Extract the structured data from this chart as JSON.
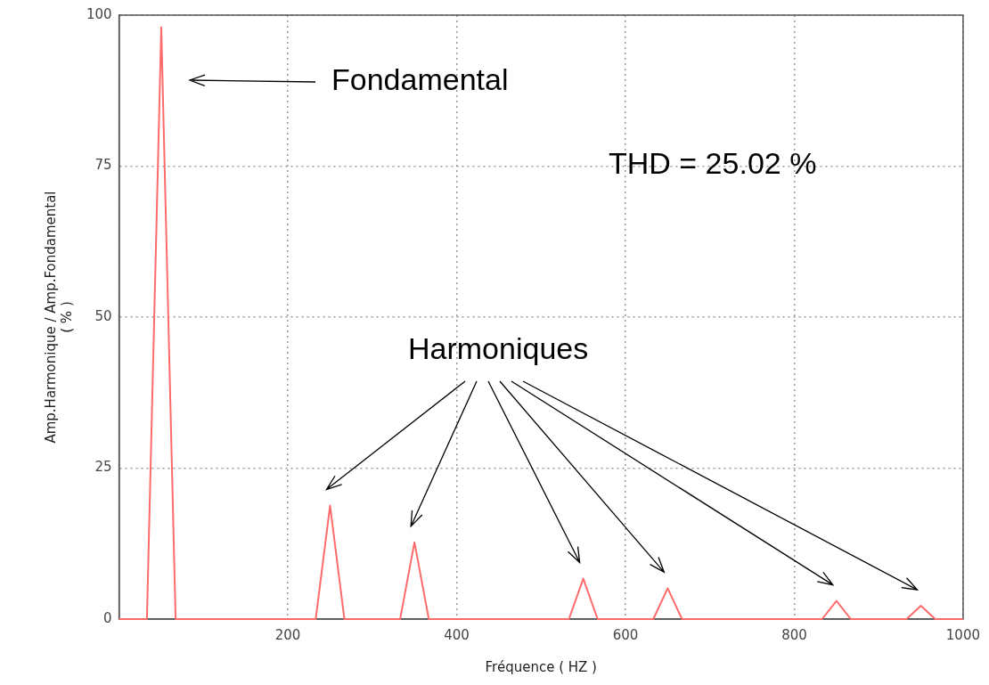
{
  "chart_data": {
    "type": "line",
    "xlabel": "Fréquence ( HZ )",
    "ylabel": "Amp.Harmonique / Amp.Fondamental\n( % )",
    "xlim": [
      0,
      1000
    ],
    "xticks": [
      {
        "value": 0,
        "label": null
      },
      200,
      400,
      600,
      800,
      1000
    ],
    "ylim": [
      0,
      100
    ],
    "yticks": [
      0,
      25,
      50,
      75,
      100
    ],
    "grid": true,
    "legend": false,
    "marker": "none",
    "line_style": "solid",
    "series": [
      {
        "color": "#ff6b6b",
        "x": [
          0,
          33,
          50,
          67,
          233,
          250,
          267,
          333,
          350,
          367,
          533,
          550,
          567,
          633,
          650,
          667,
          833,
          850,
          867,
          933,
          950,
          967,
          1000
        ],
        "values": [
          0,
          0,
          98,
          0,
          0,
          18.8,
          0,
          0,
          12.7,
          0,
          0,
          6.7,
          0,
          0,
          5.1,
          0,
          0,
          3,
          0,
          0,
          2.2,
          0,
          0
        ]
      }
    ],
    "annotations": [
      "Fondamental",
      "THD = 25.02 %",
      "Harmoniques"
    ]
  }
}
